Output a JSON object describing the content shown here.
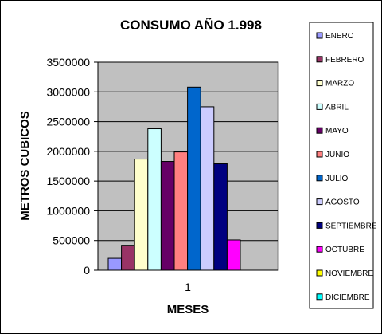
{
  "chart_data": {
    "type": "bar",
    "title": "CONSUMO AÑO 1.998",
    "xlabel": "MESES",
    "ylabel": "METROS CUBICOS",
    "categories": [
      "1"
    ],
    "ylim": [
      0,
      3500000
    ],
    "yticks": [
      0,
      500000,
      1000000,
      1500000,
      2000000,
      2500000,
      3000000,
      3500000
    ],
    "grid": true,
    "legend_position": "right",
    "plot_background": "#c0c0c0",
    "series": [
      {
        "name": "ENERO",
        "values": [
          200000
        ],
        "color": "#9999ff"
      },
      {
        "name": "FEBRERO",
        "values": [
          420000
        ],
        "color": "#993366"
      },
      {
        "name": "MARZO",
        "values": [
          1870000
        ],
        "color": "#ffffcc"
      },
      {
        "name": "ABRIL",
        "values": [
          2380000
        ],
        "color": "#ccffff"
      },
      {
        "name": "MAYO",
        "values": [
          1830000
        ],
        "color": "#660066"
      },
      {
        "name": "JUNIO",
        "values": [
          1990000
        ],
        "color": "#ff8080"
      },
      {
        "name": "JULIO",
        "values": [
          3080000
        ],
        "color": "#0066cc"
      },
      {
        "name": "AGOSTO",
        "values": [
          2750000
        ],
        "color": "#ccccff"
      },
      {
        "name": "SEPTIEMBRE",
        "values": [
          1790000
        ],
        "color": "#000080"
      },
      {
        "name": "OCTUBRE",
        "values": [
          510000
        ],
        "color": "#ff00ff"
      },
      {
        "name": "NOVIEMBRE",
        "values": [
          0
        ],
        "color": "#ffff00"
      },
      {
        "name": "DICIEMBRE",
        "values": [
          0
        ],
        "color": "#00ffff"
      }
    ]
  }
}
